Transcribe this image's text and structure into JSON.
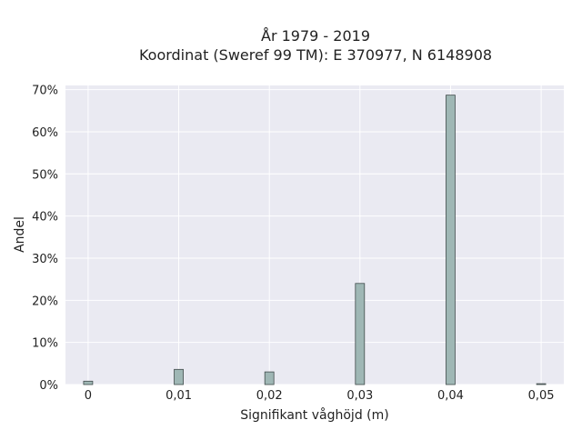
{
  "chart_data": {
    "type": "bar",
    "title": "År 1979 - 2019",
    "subtitle": "Koordinat (Sweref 99 TM): E 370977, N 6148908",
    "xlabel": "Signifikant våghöjd (m)",
    "ylabel": "Andel",
    "xlim": [
      -0.0025,
      0.0525
    ],
    "ylim": [
      0,
      0.71
    ],
    "x_ticks": [
      0,
      0.01,
      0.02,
      0.03,
      0.04,
      0.05
    ],
    "x_tick_labels": [
      "0",
      "0,01",
      "0,02",
      "0,03",
      "0,04",
      "0,05"
    ],
    "y_ticks": [
      0,
      0.1,
      0.2,
      0.3,
      0.4,
      0.5,
      0.6,
      0.7
    ],
    "y_tick_labels": [
      "0%",
      "10%",
      "20%",
      "30%",
      "40%",
      "50%",
      "60%",
      "70%"
    ],
    "bin_width": 0.001,
    "x": [
      0.0,
      0.01,
      0.02,
      0.03,
      0.04,
      0.05
    ],
    "values": [
      0.008,
      0.036,
      0.03,
      0.24,
      0.687,
      0.002
    ],
    "grid": true,
    "colors": {
      "bar_fill": "#9fb7b5",
      "bar_stroke": "#3f4a4a",
      "plot_bg": "#eaeaf2",
      "grid": "#ffffff",
      "text": "#222222"
    }
  }
}
